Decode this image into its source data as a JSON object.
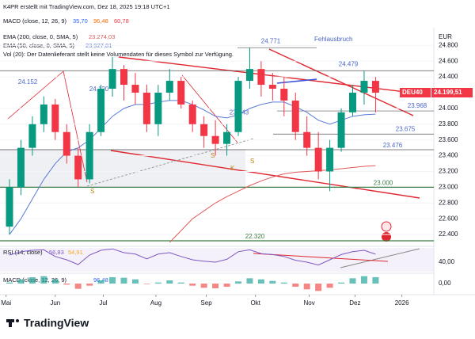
{
  "header": {
    "credit": "K4PR erstellt mit TradingView.com, Dez 18, 2025 19:18 UTC+1",
    "macd_legend": "MACD (close, 12, 26, 9)",
    "macd_vals": [
      "35,70",
      "96,48",
      "60,78"
    ],
    "ema200_legend": "EMA (200, close, 0, SMA, 5)",
    "ema200_val": "23.274,03",
    "ema50_legend": "EMA (50, close, 0, SMA, 5)",
    "ema50_val": "23.927,81",
    "vol_legend": "Vol (20): Der Datenlieferant stellt keine Volumendaten für dieses Symbol zur Verfügung.",
    "currency": "EUR",
    "symbol": "DEU40",
    "last_price": "24.199,51",
    "rsi_legend": "RSI (14, close)",
    "rsi_vals": [
      "56,83",
      "54,91"
    ],
    "macd2_legend": "MACD (close, 12, 26, 9)",
    "macd2_val": "96,48",
    "brand": "TradingView"
  },
  "chart_data": {
    "type": "candlestick",
    "ylim": [
      22260,
      25024
    ],
    "yticks": [
      {
        "value": 24800,
        "label": "24.800"
      },
      {
        "value": 24600,
        "label": "24.600"
      },
      {
        "value": 24400,
        "label": "24.400"
      },
      {
        "value": 24000,
        "label": "24.000"
      },
      {
        "value": 23800,
        "label": "23.800"
      },
      {
        "value": 23600,
        "label": "23.600"
      },
      {
        "value": 23400,
        "label": "23.400"
      },
      {
        "value": 23200,
        "label": "23.200"
      },
      {
        "value": 23000,
        "label": "23.000"
      },
      {
        "value": 22800,
        "label": "22.800"
      },
      {
        "value": 22600,
        "label": "22.600"
      },
      {
        "value": 22400,
        "label": "22.400"
      }
    ],
    "xticks": [
      {
        "value": -0.3,
        "label": "Mai"
      },
      {
        "value": 4.0,
        "label": "Jun"
      },
      {
        "value": 8.2,
        "label": "Jul"
      },
      {
        "value": 12.8,
        "label": "Aug"
      },
      {
        "value": 17.2,
        "label": "Sep"
      },
      {
        "value": 21.5,
        "label": "Okt"
      },
      {
        "value": 26.2,
        "label": "Nov"
      },
      {
        "value": 30.2,
        "label": "Dez"
      },
      {
        "value": 34.3,
        "label": "2026"
      }
    ],
    "up_color": "#089981",
    "down_color": "#f23645",
    "open": [
      22500,
      23000,
      23500,
      23800,
      24050,
      23700,
      23400,
      23100,
      23700,
      24250,
      24500,
      24300,
      24200,
      23800,
      24200,
      24350,
      24050,
      23800,
      23650,
      23550,
      23700,
      24350,
      24500,
      24300,
      24250,
      24100,
      23700,
      23500,
      23200,
      23500,
      23950,
      24200,
      24350
    ],
    "high": [
      23100,
      23600,
      23900,
      24152,
      24120,
      23800,
      23500,
      23800,
      24300,
      24650,
      24550,
      24450,
      24300,
      24300,
      24500,
      24400,
      24100,
      23900,
      23850,
      23800,
      24400,
      24771,
      24600,
      24450,
      24400,
      24200,
      23900,
      23700,
      23600,
      24000,
      24300,
      24479,
      24400
    ],
    "low": [
      22400,
      22900,
      23400,
      23700,
      23600,
      23300,
      23000,
      23050,
      23650,
      24150,
      24100,
      24050,
      23700,
      23650,
      24100,
      24000,
      23700,
      23500,
      23400,
      23400,
      23650,
      24250,
      24150,
      24100,
      23900,
      23600,
      23400,
      23100,
      22950,
      23450,
      23900,
      24050,
      23950
    ],
    "close": [
      23000,
      23500,
      23800,
      24050,
      23700,
      23400,
      23100,
      23700,
      24250,
      24500,
      24300,
      24200,
      23800,
      24200,
      24350,
      24050,
      23800,
      23650,
      23550,
      23700,
      24350,
      24500,
      24300,
      24250,
      24100,
      23700,
      23500,
      23200,
      23500,
      23950,
      24200,
      24350,
      24199.51
    ],
    "series": [
      {
        "name": "EMA (50, close, 0, SMA, 5)",
        "color": "#5b7bd6",
        "values": [
          22400,
          22600,
          22850,
          23100,
          23300,
          23450,
          23500,
          23600,
          23750,
          23900,
          24000,
          24050,
          24050,
          24080,
          24100,
          24100,
          24050,
          23980,
          23900,
          23880,
          23920,
          24000,
          24050,
          24080,
          24080,
          24020,
          23950,
          23850,
          23800,
          23850,
          23900,
          23920,
          23927.81
        ]
      },
      {
        "name": "EMA (200, close, 0, SMA, 5)",
        "color": "#e05a5a",
        "values": [
          null,
          null,
          null,
          null,
          null,
          null,
          null,
          null,
          null,
          null,
          null,
          null,
          null,
          null,
          22300,
          22450,
          22600,
          22700,
          22800,
          22880,
          22950,
          23020,
          23080,
          23130,
          23170,
          23190,
          23200,
          23210,
          23220,
          23235,
          23250,
          23265,
          23274.03
        ]
      }
    ],
    "levels": [
      {
        "value": 24771,
        "label": "24.771"
      },
      {
        "value": 24479,
        "label": "24.479"
      },
      {
        "value": 23968,
        "label": "23.968"
      },
      {
        "value": 23675,
        "label": "23.675"
      },
      {
        "value": 23476,
        "label": "23.476"
      },
      {
        "value": 23000,
        "label": "23.000"
      },
      {
        "value": 22320,
        "label": "22.320"
      },
      {
        "value": 24152,
        "label": "24.152"
      },
      {
        "value": 24120,
        "label": "24.120"
      },
      {
        "value": 23843,
        "label": "23.843"
      }
    ],
    "annotations": [
      "Fehlausbruch",
      "S",
      "S",
      "K",
      "S"
    ],
    "rsi": {
      "ylim": [
        20,
        70
      ],
      "yticks": [
        {
          "value": 40,
          "label": "40,00"
        }
      ],
      "values": [
        55,
        62,
        65,
        66,
        52,
        45,
        35,
        55,
        65,
        68,
        60,
        57,
        47,
        57,
        60,
        52,
        45,
        42,
        40,
        46,
        62,
        66,
        58,
        56,
        52,
        44,
        40,
        34,
        45,
        56,
        62,
        65,
        56.83
      ]
    },
    "macd": {
      "ylim": [
        -90,
        90
      ],
      "yticks": [
        {
          "value": 0,
          "label": "0,00"
        }
      ],
      "values": [
        10,
        40,
        60,
        70,
        40,
        -10,
        -50,
        -20,
        30,
        60,
        55,
        40,
        -5,
        10,
        30,
        10,
        -20,
        -40,
        -45,
        -30,
        20,
        50,
        40,
        25,
        10,
        -30,
        -55,
        -70,
        -40,
        10,
        50,
        70,
        60.78
      ]
    }
  }
}
